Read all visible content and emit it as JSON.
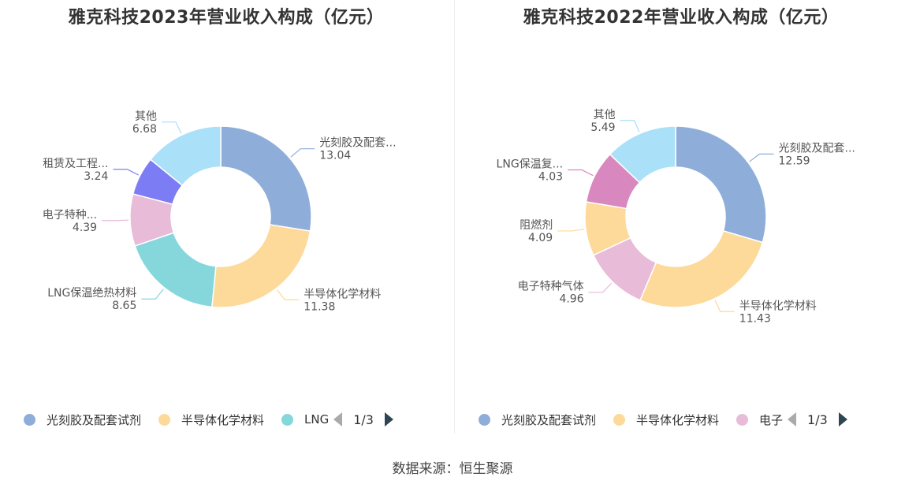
{
  "source_label": "数据来源：恒生聚源",
  "chart_data": [
    {
      "type": "pie",
      "title": "雅克科技2023年营业收入构成（亿元）",
      "slices": [
        {
          "name": "光刻胶及配套试剂",
          "label": "光刻胶及配套...",
          "value": 13.04,
          "color": "#8eaed9"
        },
        {
          "name": "半导体化学材料",
          "label": "半导体化学材料",
          "value": 11.38,
          "color": "#fdd99a"
        },
        {
          "name": "LNG保温绝热材料",
          "label": "LNG保温绝热材料",
          "value": 8.65,
          "color": "#85d7db"
        },
        {
          "name": "电子特种气体",
          "label": "电子特种...",
          "value": 4.39,
          "color": "#e8bbd9"
        },
        {
          "name": "租赁及工程服务",
          "label": "租赁及工程...",
          "value": 3.24,
          "color": "#7c7cf4"
        },
        {
          "name": "其他",
          "label": "其他",
          "value": 6.68,
          "color": "#aae0f8"
        }
      ],
      "legend": {
        "items": [
          {
            "label": "光刻胶及配套试剂",
            "color": "#8eaed9"
          },
          {
            "label": "半导体化学材料",
            "color": "#fdd99a"
          },
          {
            "label": "LNG",
            "color": "#85d7db"
          }
        ],
        "page": "1/3",
        "position": "bottom"
      }
    },
    {
      "type": "pie",
      "title": "雅克科技2022年营业收入构成（亿元）",
      "slices": [
        {
          "name": "光刻胶及配套试剂",
          "label": "光刻胶及配套...",
          "value": 12.59,
          "color": "#8eaed9"
        },
        {
          "name": "半导体化学材料",
          "label": "半导体化学材料",
          "value": 11.43,
          "color": "#fdd99a"
        },
        {
          "name": "电子特种气体",
          "label": "电子特种气体",
          "value": 4.96,
          "color": "#e8bbd9"
        },
        {
          "name": "阻燃剂",
          "label": "阻燃剂",
          "value": 4.09,
          "color": "#fdd99a"
        },
        {
          "name": "LNG保温复合材料",
          "label": "LNG保温复...",
          "value": 4.03,
          "color": "#d988bf"
        },
        {
          "name": "其他",
          "label": "其他",
          "value": 5.49,
          "color": "#aae0f8"
        }
      ],
      "legend": {
        "items": [
          {
            "label": "光刻胶及配套试剂",
            "color": "#8eaed9"
          },
          {
            "label": "半导体化学材料",
            "color": "#fdd99a"
          },
          {
            "label": "电子",
            "color": "#e8bbd9"
          }
        ],
        "page": "1/3",
        "position": "bottom"
      }
    }
  ]
}
